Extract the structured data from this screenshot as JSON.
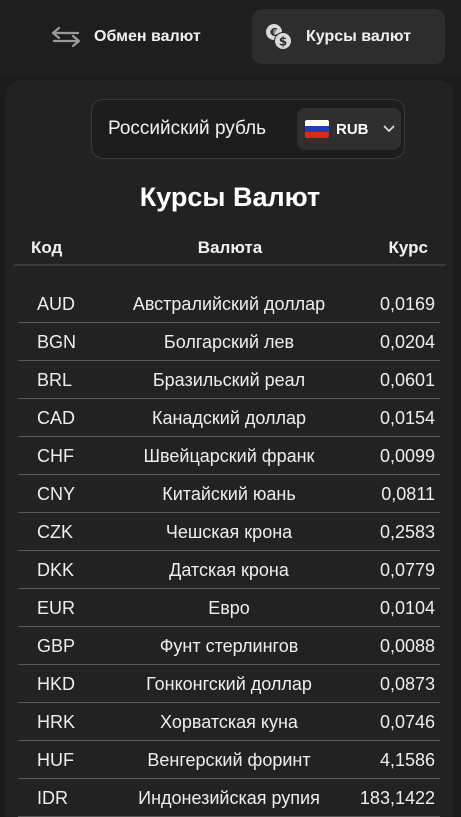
{
  "tabs": {
    "exchange_label": "Обмен валют",
    "rates_label": "Курсы валют"
  },
  "selector": {
    "currency_name": "Российский рубль",
    "currency_code": "RUB"
  },
  "title": "Курсы Валют",
  "table": {
    "headers": {
      "code": "Код",
      "name": "Валюта",
      "rate": "Курс"
    },
    "rows": [
      {
        "code": "AUD",
        "name": "Австралийский доллар",
        "rate": "0,0169"
      },
      {
        "code": "BGN",
        "name": "Болгарский лев",
        "rate": "0,0204"
      },
      {
        "code": "BRL",
        "name": "Бразильский реал",
        "rate": "0,0601"
      },
      {
        "code": "CAD",
        "name": "Канадский доллар",
        "rate": "0,0154"
      },
      {
        "code": "CHF",
        "name": "Швейцарский франк",
        "rate": "0,0099"
      },
      {
        "code": "CNY",
        "name": "Китайский юань",
        "rate": "0,0811"
      },
      {
        "code": "CZK",
        "name": "Чешская крона",
        "rate": "0,2583"
      },
      {
        "code": "DKK",
        "name": "Датская крона",
        "rate": "0,0779"
      },
      {
        "code": "EUR",
        "name": "Евро",
        "rate": "0,0104"
      },
      {
        "code": "GBP",
        "name": "Фунт стерлингов",
        "rate": "0,0088"
      },
      {
        "code": "HKD",
        "name": "Гонконгский доллар",
        "rate": "0,0873"
      },
      {
        "code": "HRK",
        "name": "Хорватская куна",
        "rate": "0,0746"
      },
      {
        "code": "HUF",
        "name": "Венгерский форинт",
        "rate": "4,1586"
      },
      {
        "code": "IDR",
        "name": "Индонезийская рупия",
        "rate": "183,1422"
      }
    ]
  }
}
